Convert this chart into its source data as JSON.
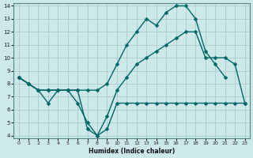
{
  "xlabel": "Humidex (Indice chaleur)",
  "bg_color": "#cce8e8",
  "grid_color": "#aacccc",
  "line_color": "#006666",
  "line1_x": [
    0,
    1,
    2,
    3,
    4,
    5,
    6,
    7,
    8,
    9,
    10,
    11,
    12,
    13,
    14,
    15,
    16,
    17,
    18,
    19,
    20,
    21
  ],
  "line1_y": [
    8.5,
    8.0,
    7.5,
    7.5,
    7.5,
    7.5,
    7.5,
    7.5,
    7.5,
    8.0,
    9.5,
    11.0,
    12.0,
    13.0,
    12.5,
    13.5,
    14.0,
    14.0,
    13.0,
    10.5,
    9.5,
    8.5
  ],
  "line2_x": [
    0,
    1,
    2,
    3,
    4,
    5,
    6,
    7,
    8,
    9,
    10,
    11,
    12,
    13,
    14,
    15,
    16,
    17,
    18,
    19,
    20,
    21,
    22,
    23
  ],
  "line2_y": [
    8.5,
    8.0,
    7.5,
    6.5,
    7.5,
    7.5,
    6.5,
    5.0,
    4.0,
    4.5,
    6.5,
    6.5,
    6.5,
    6.5,
    6.5,
    6.5,
    6.5,
    6.5,
    6.5,
    6.5,
    6.5,
    6.5,
    6.5,
    6.5
  ],
  "line3_x": [
    0,
    1,
    2,
    3,
    4,
    5,
    6,
    7,
    8,
    9,
    10,
    11,
    12,
    13,
    14,
    15,
    16,
    17,
    18,
    19,
    20,
    21,
    22,
    23
  ],
  "line3_y": [
    8.5,
    8.0,
    7.5,
    7.5,
    7.5,
    7.5,
    7.5,
    4.5,
    4.0,
    5.5,
    7.5,
    8.5,
    9.5,
    10.0,
    10.5,
    11.0,
    11.5,
    12.0,
    12.0,
    10.0,
    10.0,
    10.0,
    9.5,
    6.5
  ],
  "ylim": [
    4,
    14
  ],
  "xlim": [
    0,
    23
  ],
  "yticks": [
    4,
    5,
    6,
    7,
    8,
    9,
    10,
    11,
    12,
    13,
    14
  ],
  "xticks": [
    0,
    1,
    2,
    3,
    4,
    5,
    6,
    7,
    8,
    9,
    10,
    11,
    12,
    13,
    14,
    15,
    16,
    17,
    18,
    19,
    20,
    21,
    22,
    23
  ]
}
